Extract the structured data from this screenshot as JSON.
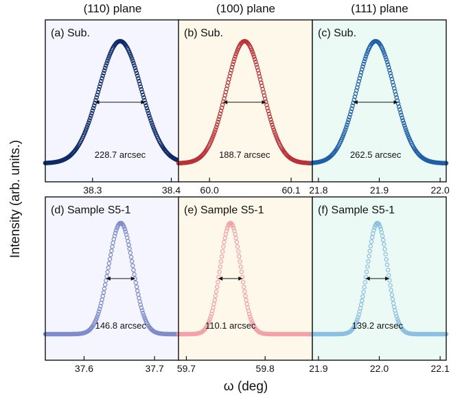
{
  "column_titles": [
    "(110) plane",
    "(100) plane",
    "(111) plane"
  ],
  "ylabel": "Intensity (arb. units.)",
  "xlabel": "ω (deg)",
  "chart_data": [
    {
      "type": "scatter",
      "label": "(a) Sub.",
      "fwhm_text": "228.7 arcsec",
      "center": 38.335,
      "fwhm": 0.0635,
      "xlim": [
        38.24,
        38.41
      ],
      "xticks": [
        38.3,
        38.4
      ],
      "xtick_labels": [
        "38.3",
        "38.4"
      ],
      "color": "#0c2a66",
      "bg": "#f5f5ff"
    },
    {
      "type": "scatter",
      "label": "(b) Sub.",
      "fwhm_text": "188.7 arcsec",
      "center": 60.043,
      "fwhm": 0.0524,
      "xlim": [
        59.962,
        60.126
      ],
      "xticks": [
        60.0,
        60.1
      ],
      "xtick_labels": [
        "60.0",
        "60.1"
      ],
      "color": "#b83238",
      "bg": "#fdf8ea"
    },
    {
      "type": "scatter",
      "label": "(c) Sub.",
      "fwhm_text": "262.5 arcsec",
      "center": 21.894,
      "fwhm": 0.0729,
      "xlim": [
        21.79,
        22.01
      ],
      "xticks": [
        21.8,
        21.9,
        22.0
      ],
      "xtick_labels": [
        "21.8",
        "21.9",
        "22.0"
      ],
      "color": "#1f5fa8",
      "bg": "#ebfaf5"
    },
    {
      "type": "scatter",
      "label": "(d) Sample S5-1",
      "fwhm_text": "146.8 arcsec",
      "center": 37.652,
      "fwhm": 0.0408,
      "xlim": [
        37.545,
        37.735
      ],
      "xticks": [
        37.6,
        37.7
      ],
      "xtick_labels": [
        "37.6",
        "37.7"
      ],
      "color": "#7f8cc9",
      "bg": "#f5f5ff"
    },
    {
      "type": "scatter",
      "label": "(e) Sample S5-1",
      "fwhm_text": "110.1 arcsec",
      "center": 59.756,
      "fwhm": 0.0306,
      "xlim": [
        59.69,
        59.86
      ],
      "xticks": [
        59.7,
        59.8
      ],
      "xtick_labels": [
        "59.7",
        "59.8"
      ],
      "color": "#f2a3a8",
      "bg": "#fdf8ea"
    },
    {
      "type": "scatter",
      "label": "(f) Sample S5-1",
      "fwhm_text": "139.2 arcsec",
      "center": 21.997,
      "fwhm": 0.0387,
      "xlim": [
        21.89,
        22.11
      ],
      "xticks": [
        21.9,
        22.0,
        22.1
      ],
      "xtick_labels": [
        "21.9",
        "22.0",
        "22.1"
      ],
      "color": "#8dbfe0",
      "bg": "#ebfaf5"
    }
  ]
}
